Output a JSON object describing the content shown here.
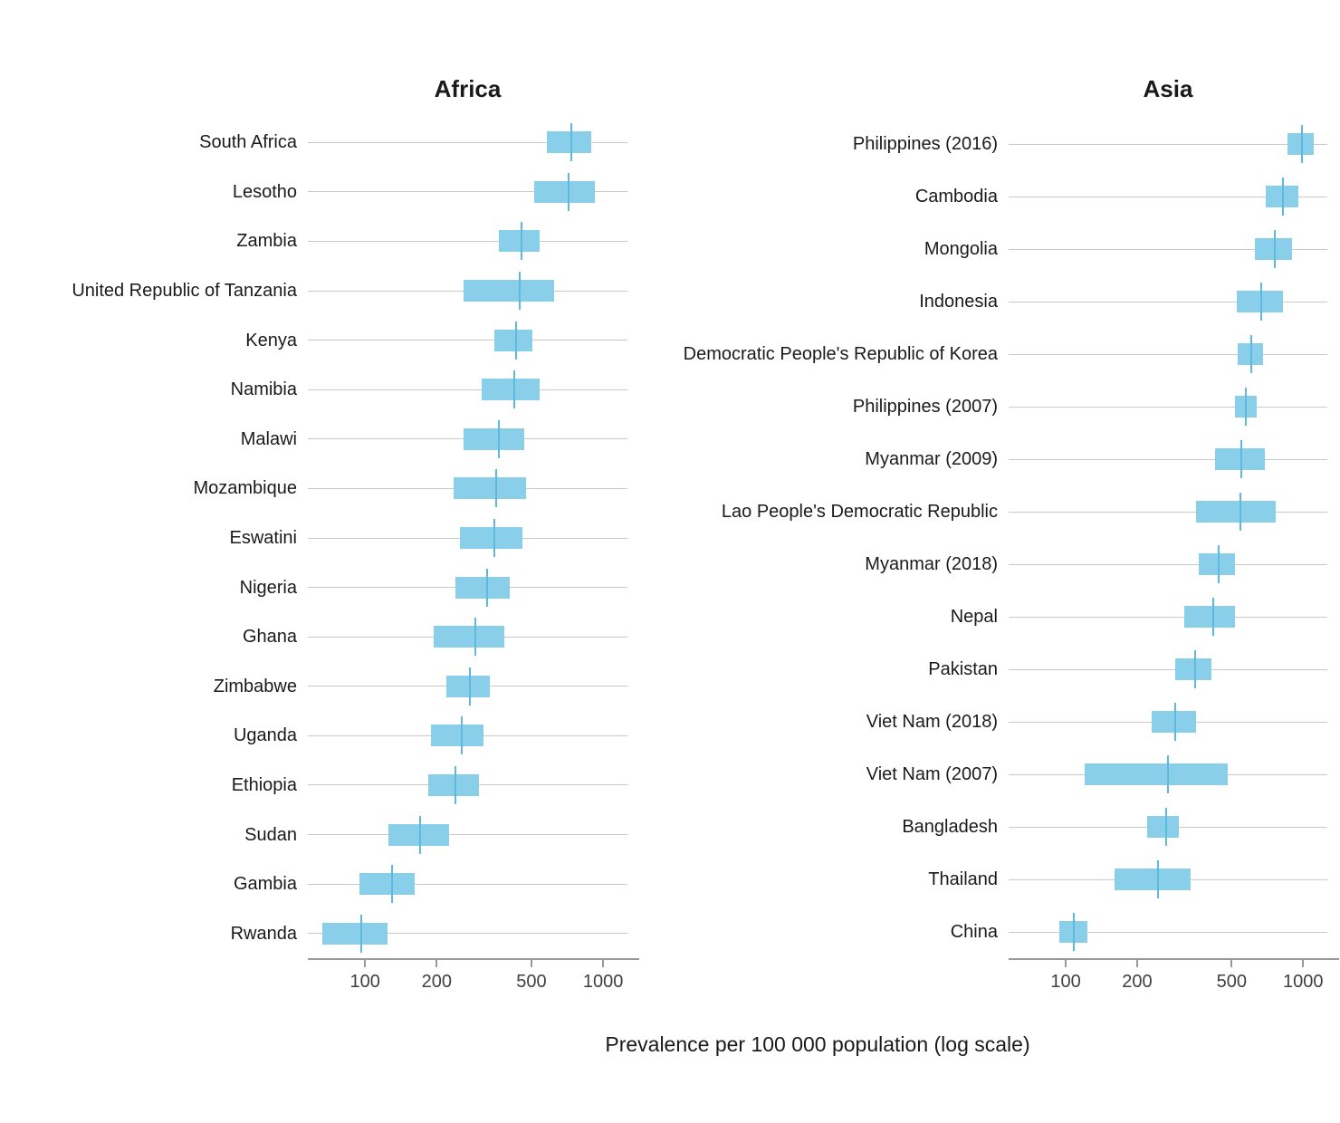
{
  "figure": {
    "xlabel": "Prevalence per 100 000 population (log scale)",
    "colors": {
      "bar_fill": "#89CFE9",
      "point_tick": "#5FB9DF",
      "gridline": "#C9C9C9",
      "axis": "#999999",
      "tick_label": "#404040",
      "label": "#1A1A1A",
      "background": "#FFFFFF"
    }
  },
  "chart_data": [
    {
      "type": "bar",
      "subtype": "horizontal-interval-with-point-estimate",
      "title": "Africa",
      "xlabel": "Prevalence per 100 000 population (log scale)",
      "x_scale": "log10",
      "x_ticks": [
        100,
        200,
        500,
        1000
      ],
      "x_domain": [
        57.5,
        1265
      ],
      "grid": "horizontal-per-category",
      "legend": "none",
      "categories": [
        "South Africa",
        "Lesotho",
        "Zambia",
        "United Republic of Tanzania",
        "Kenya",
        "Namibia",
        "Malawi",
        "Mozambique",
        "Eswatini",
        "Nigeria",
        "Ghana",
        "Zimbabwe",
        "Uganda",
        "Ethiopia",
        "Sudan",
        "Gambia",
        "Rwanda"
      ],
      "series": [
        {
          "name": "ci_lower",
          "values": [
            580,
            515,
            365,
            260,
            350,
            310,
            260,
            235,
            250,
            240,
            195,
            220,
            190,
            185,
            125,
            95,
            66
          ]
        },
        {
          "name": "point_estimate",
          "values": [
            735,
            715,
            455,
            445,
            430,
            425,
            365,
            355,
            350,
            325,
            290,
            275,
            255,
            240,
            170,
            130,
            96
          ]
        },
        {
          "name": "ci_upper",
          "values": [
            890,
            925,
            540,
            625,
            505,
            540,
            465,
            475,
            460,
            405,
            385,
            335,
            315,
            300,
            225,
            162,
            124
          ]
        }
      ]
    },
    {
      "type": "bar",
      "subtype": "horizontal-interval-with-point-estimate",
      "title": "Asia",
      "xlabel": "Prevalence per 100 000 population (log scale)",
      "x_scale": "log10",
      "x_ticks": [
        100,
        200,
        500,
        1000
      ],
      "x_domain": [
        57.5,
        1265
      ],
      "grid": "horizontal-per-category",
      "legend": "none",
      "categories": [
        "Philippines (2016)",
        "Cambodia",
        "Mongolia",
        "Indonesia",
        "Democratic People's Republic of Korea",
        "Philippines (2007)",
        "Myanmar (2009)",
        "Lao People's Democratic Republic",
        "Myanmar (2018)",
        "Nepal",
        "Pakistan",
        "Viet Nam (2018)",
        "Viet Nam (2007)",
        "Bangladesh",
        "Thailand",
        "China"
      ],
      "series": [
        {
          "name": "ci_lower",
          "values": [
            860,
            695,
            625,
            525,
            530,
            515,
            425,
            355,
            365,
            315,
            290,
            230,
            120,
            220,
            160,
            94
          ]
        },
        {
          "name": "point_estimate",
          "values": [
            990,
            820,
            760,
            665,
            605,
            575,
            550,
            545,
            440,
            420,
            350,
            290,
            270,
            265,
            245,
            108
          ]
        },
        {
          "name": "ci_upper",
          "values": [
            1110,
            955,
            900,
            820,
            680,
            640,
            690,
            770,
            515,
            515,
            410,
            355,
            480,
            300,
            335,
            123
          ]
        }
      ]
    }
  ]
}
